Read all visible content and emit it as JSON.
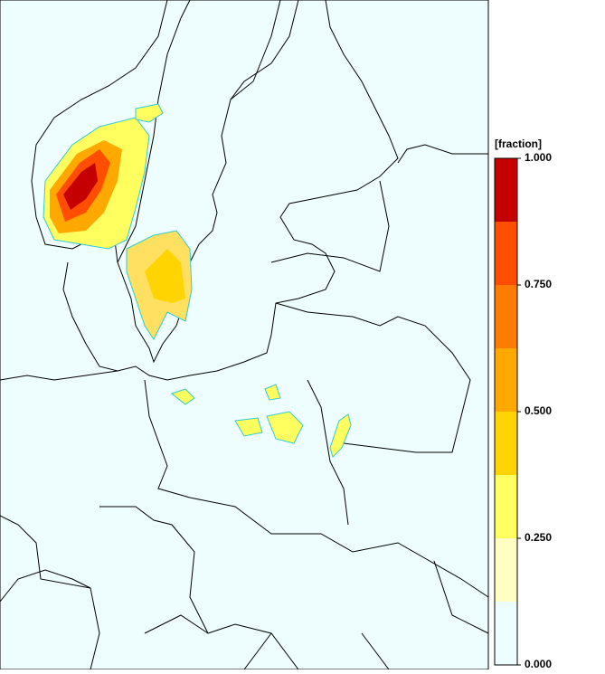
{
  "colorbar": {
    "title": "[fraction]",
    "levels": [
      0,
      0.125,
      0.25,
      0.375,
      0.5,
      0.625,
      0.75,
      0.875,
      1
    ],
    "colors": [
      "#eefefe",
      "#ffffc4",
      "#ffff60",
      "#ffd400",
      "#ffa800",
      "#ff7c00",
      "#ff4e00",
      "#c40000"
    ],
    "ticks": [
      {
        "value": 1,
        "label": "1.000"
      },
      {
        "value": 0.75,
        "label": "0.750"
      },
      {
        "value": 0.5,
        "label": "0.500"
      },
      {
        "value": 0.25,
        "label": "0.250"
      },
      {
        "value": 0,
        "label": "0.000"
      }
    ]
  }
}
